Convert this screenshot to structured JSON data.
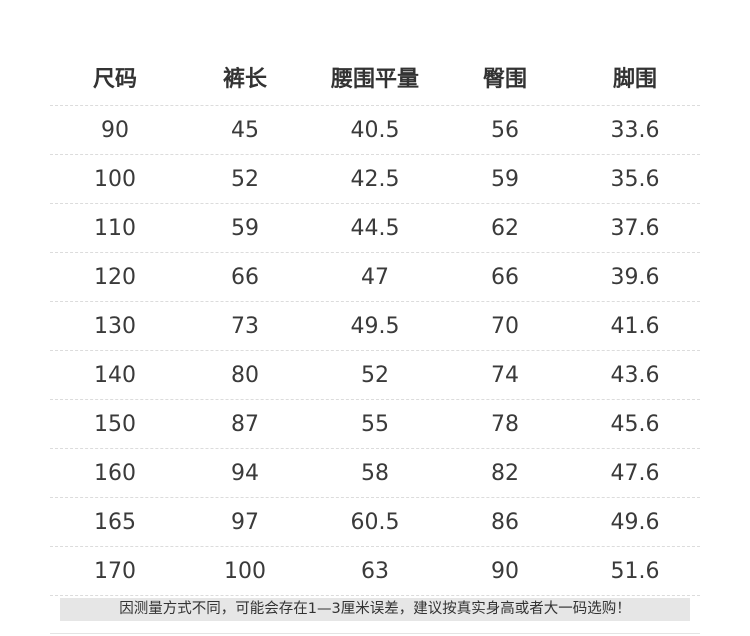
{
  "headers": [
    "尺码",
    "裤长",
    "腰围平量",
    "臀围",
    "脚围"
  ],
  "rows": [
    [
      "90",
      "45",
      "40.5",
      "56",
      "33.6"
    ],
    [
      "100",
      "52",
      "42.5",
      "59",
      "35.6"
    ],
    [
      "110",
      "59",
      "44.5",
      "62",
      "37.6"
    ],
    [
      "120",
      "66",
      "47",
      "66",
      "39.6"
    ],
    [
      "130",
      "73",
      "49.5",
      "70",
      "41.6"
    ],
    [
      "140",
      "80",
      "52",
      "74",
      "43.6"
    ],
    [
      "150",
      "87",
      "55",
      "78",
      "45.6"
    ],
    [
      "160",
      "94",
      "58",
      "82",
      "47.6"
    ],
    [
      "165",
      "97",
      "60.5",
      "86",
      "49.6"
    ],
    [
      "170",
      "100",
      "63",
      "90",
      "51.6"
    ]
  ],
  "note": "因测量方式不同，可能会存在1—3厘米误差，建议按真实身高或者大一码选购！"
}
